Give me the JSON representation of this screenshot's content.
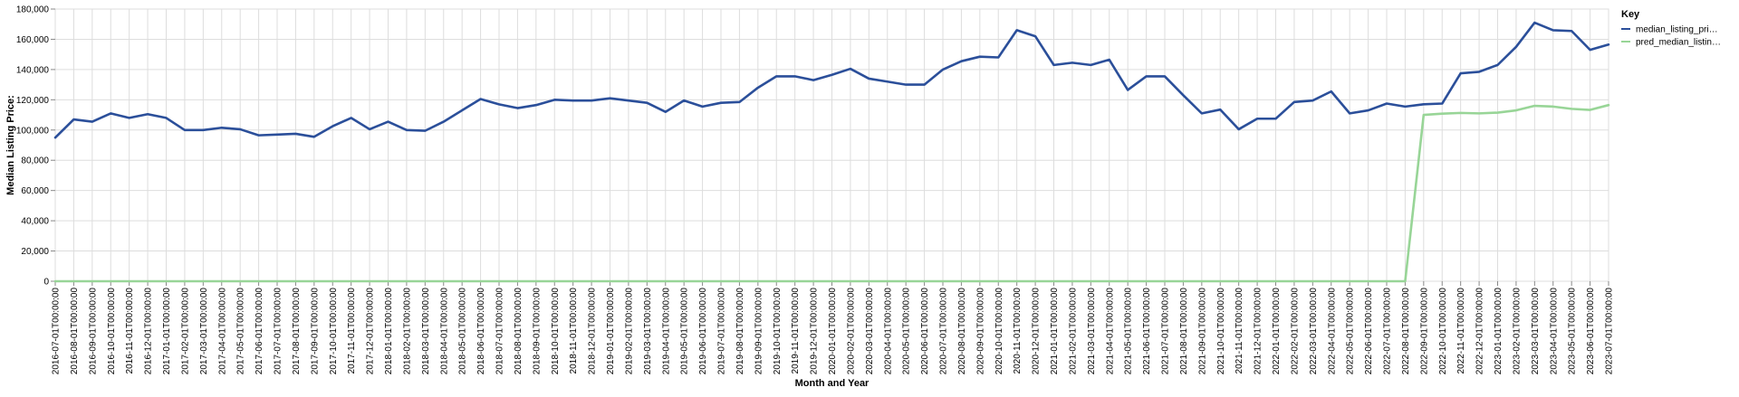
{
  "chart_data": {
    "type": "line",
    "xlabel": "Month and Year",
    "ylabel": "Median Listing Price:",
    "ylim": [
      0,
      180000
    ],
    "y_ticks": [
      "0",
      "20,000",
      "40,000",
      "60,000",
      "80,000",
      "100,000",
      "120,000",
      "140,000",
      "160,000",
      "180,000"
    ],
    "y_tick_values": [
      0,
      20000,
      40000,
      60000,
      80000,
      100000,
      120000,
      140000,
      160000,
      180000
    ],
    "grid": true,
    "legend": {
      "title": "Key",
      "placement": "right",
      "entries": [
        "median_listing_pri…",
        "pred_median_listin…"
      ]
    },
    "x": [
      "2016-07-01T00:00:00",
      "2016-08-01T00:00:00",
      "2016-09-01T00:00:00",
      "2016-10-01T00:00:00",
      "2016-11-01T00:00:00",
      "2016-12-01T00:00:00",
      "2017-01-01T00:00:00",
      "2017-02-01T00:00:00",
      "2017-03-01T00:00:00",
      "2017-04-01T00:00:00",
      "2017-05-01T00:00:00",
      "2017-06-01T00:00:00",
      "2017-07-01T00:00:00",
      "2017-08-01T00:00:00",
      "2017-09-01T00:00:00",
      "2017-10-01T00:00:00",
      "2017-11-01T00:00:00",
      "2017-12-01T00:00:00",
      "2018-01-01T00:00:00",
      "2018-02-01T00:00:00",
      "2018-03-01T00:00:00",
      "2018-04-01T00:00:00",
      "2018-05-01T00:00:00",
      "2018-06-01T00:00:00",
      "2018-07-01T00:00:00",
      "2018-08-01T00:00:00",
      "2018-09-01T00:00:00",
      "2018-10-01T00:00:00",
      "2018-11-01T00:00:00",
      "2018-12-01T00:00:00",
      "2019-01-01T00:00:00",
      "2019-02-01T00:00:00",
      "2019-03-01T00:00:00",
      "2019-04-01T00:00:00",
      "2019-05-01T00:00:00",
      "2019-06-01T00:00:00",
      "2019-07-01T00:00:00",
      "2019-08-01T00:00:00",
      "2019-09-01T00:00:00",
      "2019-10-01T00:00:00",
      "2019-11-01T00:00:00",
      "2019-12-01T00:00:00",
      "2020-01-01T00:00:00",
      "2020-02-01T00:00:00",
      "2020-03-01T00:00:00",
      "2020-04-01T00:00:00",
      "2020-05-01T00:00:00",
      "2020-06-01T00:00:00",
      "2020-07-01T00:00:00",
      "2020-08-01T00:00:00",
      "2020-09-01T00:00:00",
      "2020-10-01T00:00:00",
      "2020-11-01T00:00:00",
      "2020-12-01T00:00:00",
      "2021-01-01T00:00:00",
      "2021-02-01T00:00:00",
      "2021-03-01T00:00:00",
      "2021-04-01T00:00:00",
      "2021-05-01T00:00:00",
      "2021-06-01T00:00:00",
      "2021-07-01T00:00:00",
      "2021-08-01T00:00:00",
      "2021-09-01T00:00:00",
      "2021-10-01T00:00:00",
      "2021-11-01T00:00:00",
      "2021-12-01T00:00:00",
      "2022-01-01T00:00:00",
      "2022-02-01T00:00:00",
      "2022-03-01T00:00:00",
      "2022-04-01T00:00:00",
      "2022-05-01T00:00:00",
      "2022-06-01T00:00:00",
      "2022-07-01T00:00:00",
      "2022-08-01T00:00:00",
      "2022-09-01T00:00:00",
      "2022-10-01T00:00:00",
      "2022-11-01T00:00:00",
      "2022-12-01T00:00:00",
      "2023-01-01T00:00:00",
      "2023-02-01T00:00:00",
      "2023-03-01T00:00:00",
      "2023-04-01T00:00:00",
      "2023-05-01T00:00:00",
      "2023-06-01T00:00:00",
      "2023-07-01T00:00:00"
    ],
    "series": [
      {
        "name": "median_listing_pri…",
        "color": "#2b4f9a",
        "values": [
          95000,
          107000,
          105500,
          111000,
          108000,
          110500,
          108000,
          100000,
          100000,
          101500,
          100500,
          96500,
          97000,
          97500,
          95500,
          102500,
          108000,
          100500,
          105500,
          100000,
          99500,
          105500,
          113000,
          120500,
          117000,
          114500,
          116500,
          120000,
          119500,
          119500,
          121000,
          119500,
          118000,
          112000,
          119500,
          115500,
          118000,
          118500,
          128000,
          135500,
          135500,
          133000,
          136500,
          140500,
          134000,
          132000,
          130000,
          130000,
          140000,
          145500,
          148500,
          148000,
          166000,
          162000,
          143000,
          144500,
          143000,
          146500,
          126500,
          135500,
          135500,
          123000,
          111000,
          113500,
          100500,
          107500,
          107500,
          118500,
          119500,
          125500,
          111000,
          113000,
          117500,
          115500,
          117000,
          117500,
          137500,
          138500,
          143000,
          155000,
          171000,
          166000,
          165500,
          153000,
          156500
        ]
      },
      {
        "name": "pred_median_listin…",
        "color": "#98d597",
        "values": [
          0,
          0,
          0,
          0,
          0,
          0,
          0,
          0,
          0,
          0,
          0,
          0,
          0,
          0,
          0,
          0,
          0,
          0,
          0,
          0,
          0,
          0,
          0,
          0,
          0,
          0,
          0,
          0,
          0,
          0,
          0,
          0,
          0,
          0,
          0,
          0,
          0,
          0,
          0,
          0,
          0,
          0,
          0,
          0,
          0,
          0,
          0,
          0,
          0,
          0,
          0,
          0,
          0,
          0,
          0,
          0,
          0,
          0,
          0,
          0,
          0,
          0,
          0,
          0,
          0,
          0,
          0,
          0,
          0,
          0,
          0,
          0,
          0,
          0,
          110000,
          110800,
          111300,
          111000,
          111500,
          113000,
          116000,
          115500,
          114000,
          113300,
          116500
        ]
      }
    ]
  }
}
